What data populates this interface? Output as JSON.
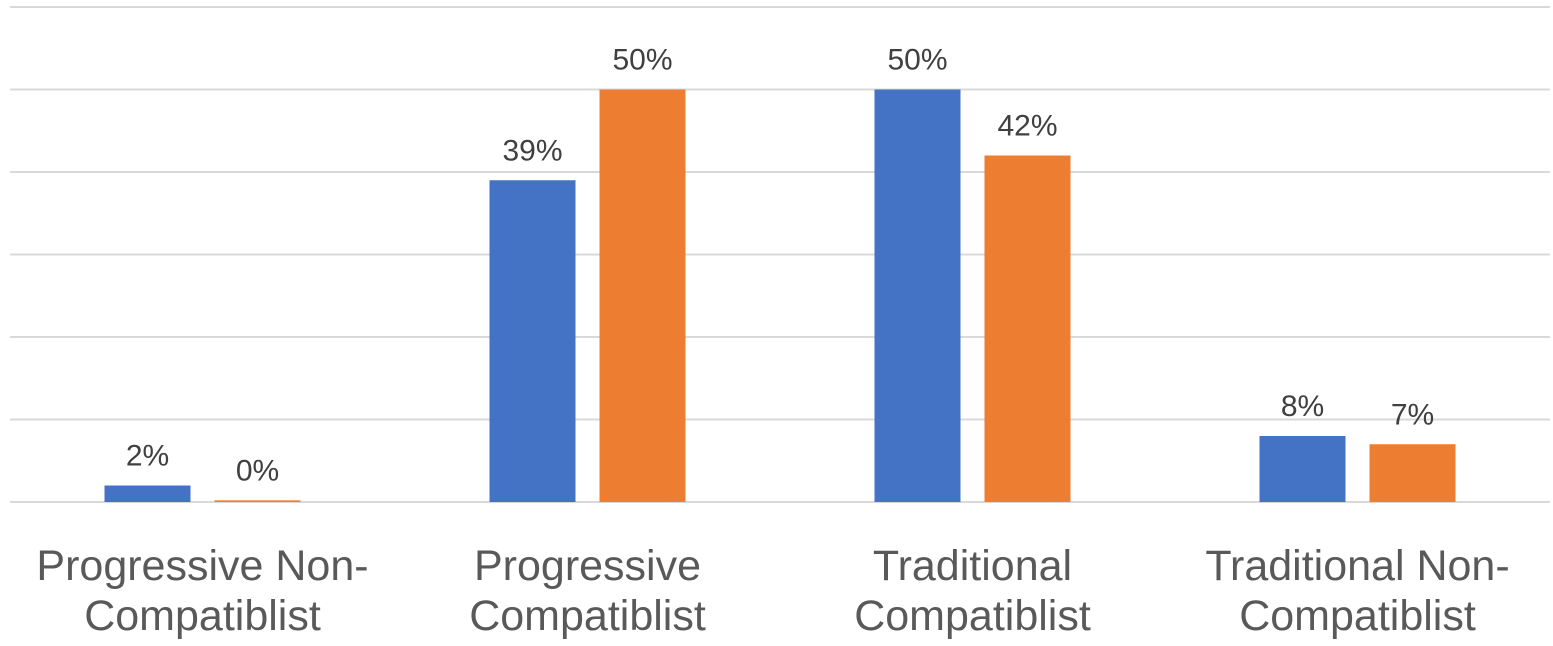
{
  "chart_data": {
    "type": "bar",
    "categories": [
      [
        "Progressive Non-",
        "Compatiblist"
      ],
      [
        "Progressive",
        "Compatiblist"
      ],
      [
        "Traditional",
        "Compatiblist"
      ],
      [
        "Traditional Non-",
        "Compatiblist"
      ]
    ],
    "series": [
      {
        "values": [
          2,
          39,
          50,
          8
        ],
        "labels": [
          "2%",
          "39%",
          "50%",
          "8%"
        ],
        "color": "#4472c4"
      },
      {
        "values": [
          0.2,
          50,
          42,
          7
        ],
        "labels": [
          "0%",
          "50%",
          "42%",
          "7%"
        ],
        "color": "#ed7d31"
      }
    ],
    "ylim": [
      0,
      60
    ],
    "grid": true,
    "legend": "none"
  }
}
